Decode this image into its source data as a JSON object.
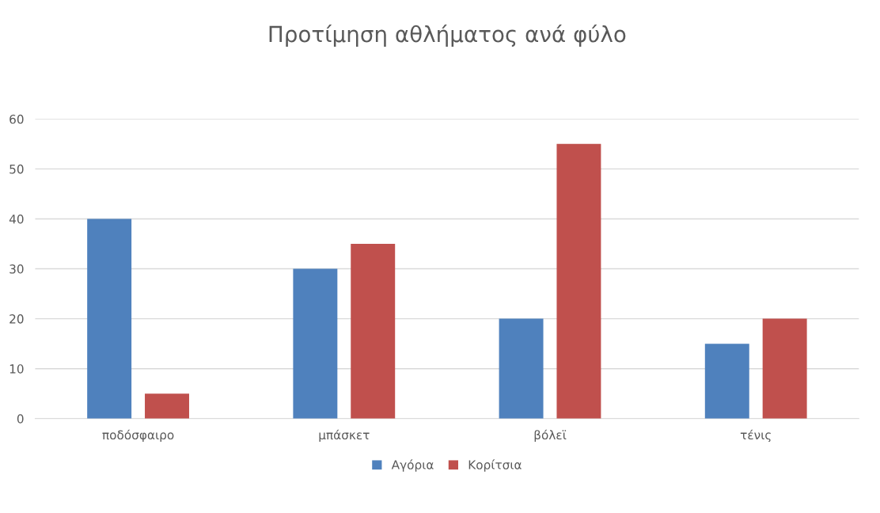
{
  "chart_data": {
    "type": "bar",
    "title": "Προτίμηση αθλήματος ανά φύλο",
    "categories": [
      "ποδόσφαιρο",
      "μπάσκετ",
      "βόλεϊ",
      "τένις"
    ],
    "series": [
      {
        "name": "Αγόρια",
        "color": "#4f81bd",
        "values": [
          40,
          30,
          20,
          15
        ]
      },
      {
        "name": "Κορίτσια",
        "color": "#c0504d",
        "values": [
          5,
          35,
          55,
          20
        ]
      }
    ],
    "ylim": [
      0,
      60
    ],
    "yticks": [
      0,
      10,
      20,
      30,
      40,
      50,
      60
    ],
    "grid": "y",
    "legend": "bottom"
  }
}
